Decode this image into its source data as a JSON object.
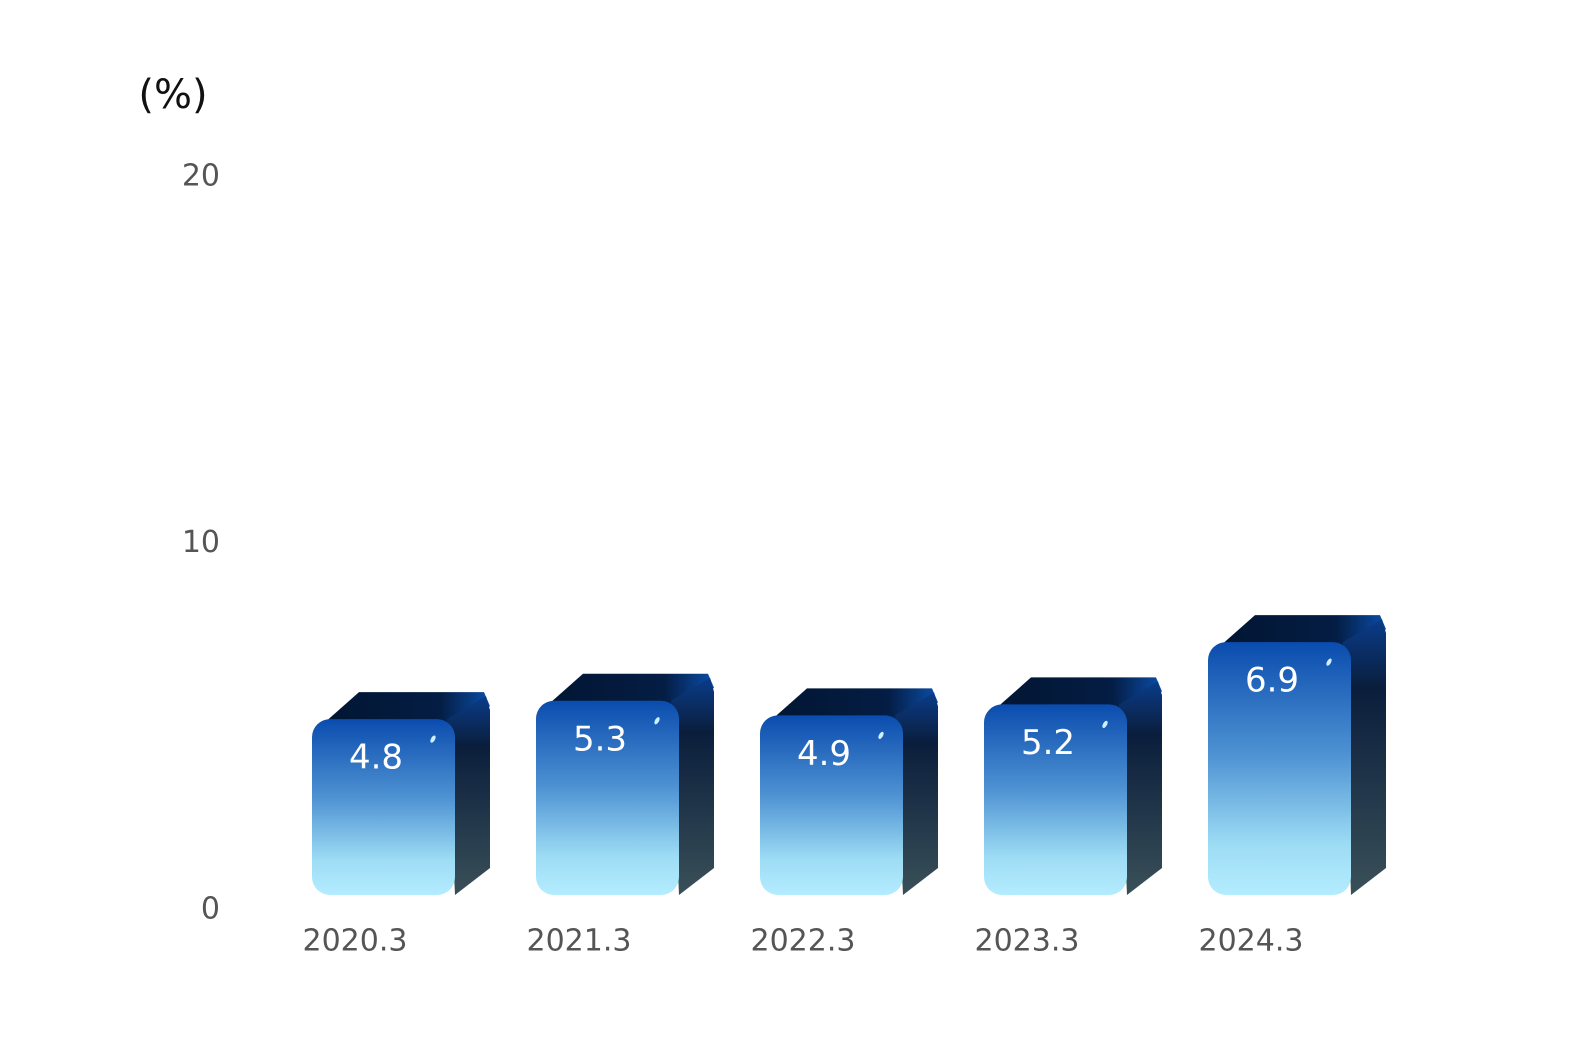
{
  "chart_data": {
    "type": "bar",
    "title": "(%)",
    "categories": [
      "2020.3",
      "2021.3",
      "2022.3",
      "2023.3",
      "2024.3"
    ],
    "values": [
      4.8,
      5.3,
      4.9,
      5.2,
      6.9
    ],
    "ylim": [
      0,
      20
    ],
    "yticks": [
      0,
      10,
      20
    ]
  }
}
